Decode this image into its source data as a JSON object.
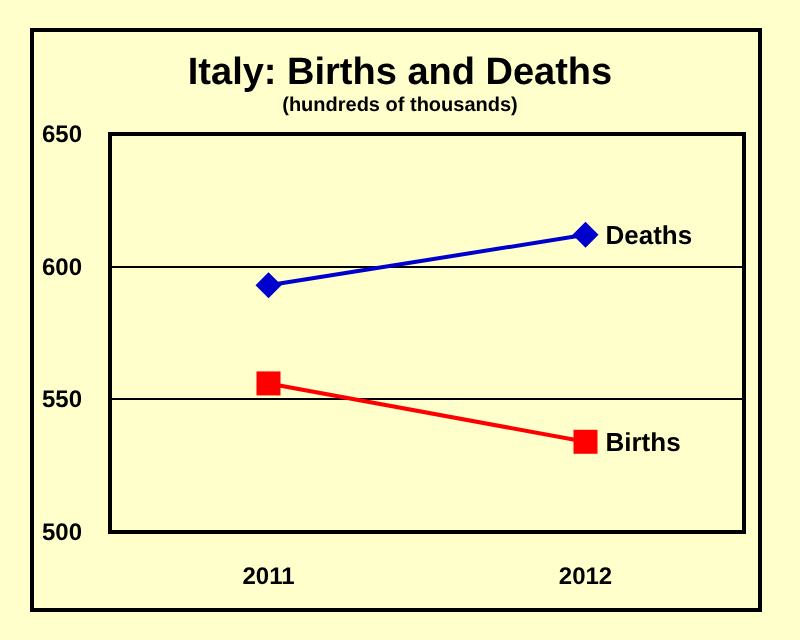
{
  "chart_data": {
    "type": "line",
    "title": "Italy: Births and Deaths",
    "subtitle": "(hundreds of thousands)",
    "categories": [
      "2011",
      "2012"
    ],
    "series": [
      {
        "name": "Deaths",
        "color": "#0000cc",
        "values": [
          593,
          612
        ],
        "marker": "diamond"
      },
      {
        "name": "Births",
        "color": "#ff0000",
        "values": [
          556,
          534
        ],
        "marker": "square"
      }
    ],
    "ylim": [
      500,
      650
    ],
    "yticks": [
      500,
      550,
      600,
      650
    ],
    "grid": "y",
    "legend": false,
    "line_style": "solid"
  }
}
